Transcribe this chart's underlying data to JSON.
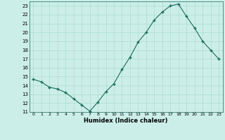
{
  "x": [
    0,
    1,
    2,
    3,
    4,
    5,
    6,
    7,
    8,
    9,
    10,
    11,
    12,
    13,
    14,
    15,
    16,
    17,
    18,
    19,
    20,
    21,
    22,
    23
  ],
  "y": [
    14.7,
    14.4,
    13.8,
    13.6,
    13.2,
    12.5,
    11.8,
    11.1,
    12.1,
    13.3,
    14.2,
    15.8,
    17.2,
    18.9,
    20.0,
    21.4,
    22.3,
    23.0,
    23.2,
    21.8,
    20.5,
    19.0,
    18.0,
    17.0
  ],
  "xlabel": "Humidex (Indice chaleur)",
  "ylim": [
    11,
    23.5
  ],
  "yticks": [
    11,
    12,
    13,
    14,
    15,
    16,
    17,
    18,
    19,
    20,
    21,
    22,
    23
  ],
  "xticks": [
    0,
    1,
    2,
    3,
    4,
    5,
    6,
    7,
    8,
    9,
    10,
    11,
    12,
    13,
    14,
    15,
    16,
    17,
    18,
    19,
    20,
    21,
    22,
    23
  ],
  "line_color": "#1a6b5a",
  "marker_color": "#1a6b5a",
  "bg_color": "#cceee8",
  "grid_color": "#aaddcc"
}
